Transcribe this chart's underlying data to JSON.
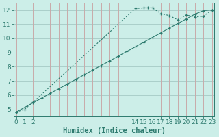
{
  "x_curve": [
    0,
    1,
    2,
    14,
    15,
    15.5,
    16,
    17,
    18,
    19,
    20,
    21,
    22,
    23
  ],
  "y_curve": [
    4.8,
    5.0,
    5.5,
    12.1,
    12.15,
    12.15,
    12.15,
    11.75,
    11.6,
    11.3,
    11.65,
    11.5,
    11.55,
    12.0
  ],
  "x_line": [
    0,
    1,
    2,
    3,
    4,
    5,
    6,
    7,
    8,
    9,
    10,
    11,
    12,
    13,
    14,
    15,
    16,
    17,
    18,
    19,
    20,
    21,
    22,
    23
  ],
  "y_line": [
    4.8,
    5.13,
    5.46,
    5.79,
    6.12,
    6.44,
    6.77,
    7.1,
    7.43,
    7.76,
    8.09,
    8.41,
    8.74,
    9.07,
    9.4,
    9.73,
    10.06,
    10.39,
    10.72,
    11.04,
    11.37,
    11.7,
    11.95,
    12.0
  ],
  "line_color": "#2d7a6e",
  "background_color": "#cceee8",
  "grid_hcolor": "#aacfca",
  "grid_vcolor": "#c8aaaa",
  "xlabel": "Humidex (Indice chaleur)",
  "xlim": [
    0,
    23
  ],
  "ylim": [
    4.5,
    12.5
  ],
  "yticks": [
    5,
    6,
    7,
    8,
    9,
    10,
    11,
    12
  ],
  "xticks": [
    0,
    1,
    2,
    14,
    15,
    16,
    17,
    18,
    19,
    20,
    21,
    22,
    23
  ],
  "xlabel_fontsize": 7.5,
  "tick_fontsize": 6.5
}
